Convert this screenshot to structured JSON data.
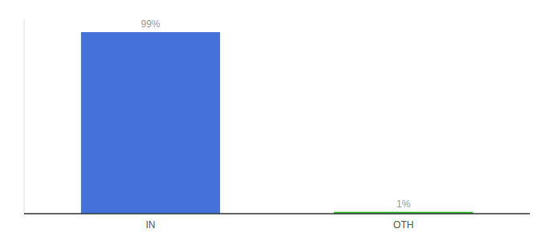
{
  "chart_data": {
    "type": "bar",
    "categories": [
      "IN",
      "OTH"
    ],
    "values": [
      99,
      1
    ],
    "value_labels": [
      "99%",
      "1%"
    ],
    "colors": [
      "#4472db",
      "#22bb22"
    ],
    "ylim": [
      0,
      106
    ],
    "data_labels": true,
    "tick_labels": "x"
  }
}
